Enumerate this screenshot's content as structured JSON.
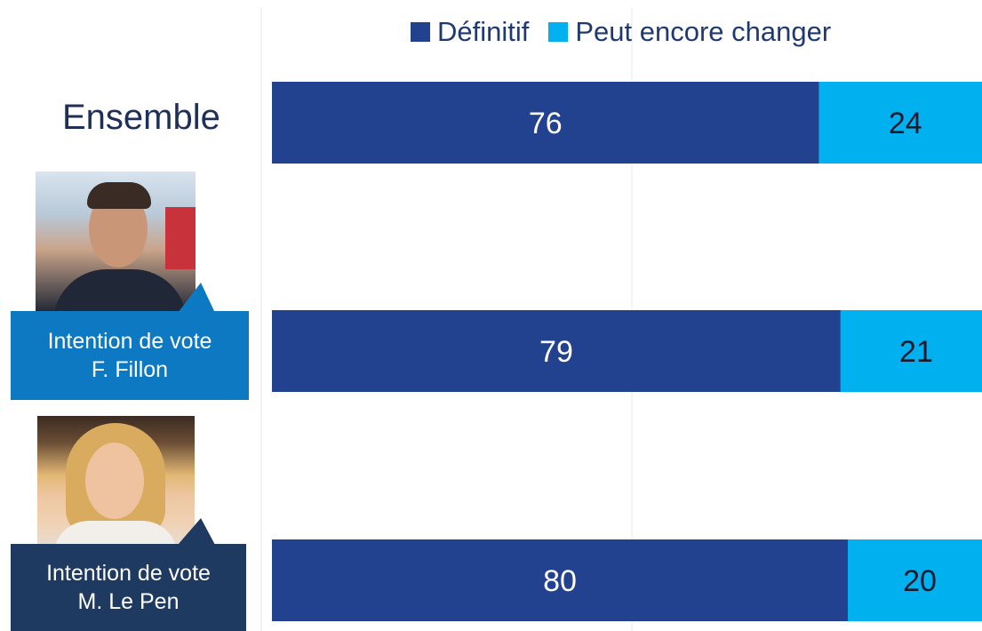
{
  "colors": {
    "definitif": "#22418f",
    "peut_changer": "#00b0ef",
    "label_text": "#ffffff"
  },
  "legend": {
    "definitif": "Définitif",
    "peut_changer": "Peut encore changer"
  },
  "ensemble_label": "Ensemble",
  "fillon": {
    "line1": "Intention de vote",
    "line2": "F. Fillon"
  },
  "lepen": {
    "line1": "Intention de vote",
    "line2": "M. Le Pen"
  },
  "chart_data": {
    "type": "bar",
    "orientation": "horizontal",
    "stacked": true,
    "categories": [
      "Ensemble",
      "Intention de vote F. Fillon",
      "Intention de vote M. Le Pen"
    ],
    "series": [
      {
        "name": "Définitif",
        "values": [
          76,
          79,
          80
        ]
      },
      {
        "name": "Peut encore changer",
        "values": [
          24,
          21,
          20
        ]
      }
    ],
    "xlim": [
      0,
      100
    ],
    "legend_position": "top",
    "grid": true
  }
}
